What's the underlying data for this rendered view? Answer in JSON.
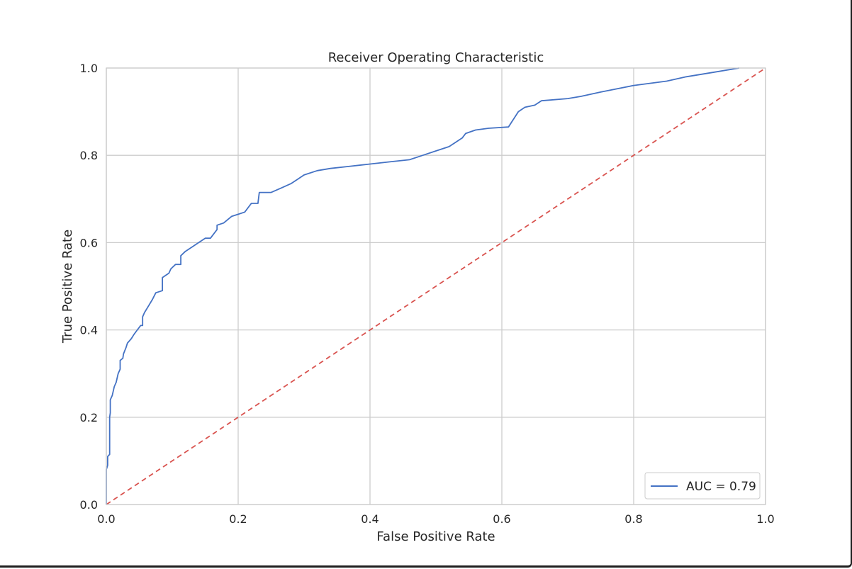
{
  "chart_data": {
    "type": "line",
    "title": "Receiver Operating Characteristic",
    "xlabel": "False Positive Rate",
    "ylabel": "True Positive Rate",
    "xlim": [
      0.0,
      1.0
    ],
    "ylim": [
      0.0,
      1.0
    ],
    "xticks": [
      "0.0",
      "0.2",
      "0.4",
      "0.6",
      "0.8",
      "1.0"
    ],
    "yticks": [
      "0.0",
      "0.2",
      "0.4",
      "0.6",
      "0.8",
      "1.0"
    ],
    "grid": true,
    "legend_position": "lower-right",
    "series": [
      {
        "name": "AUC = 0.79",
        "color": "#4472c4",
        "style": "solid",
        "x": [
          0.0,
          0.0,
          0.002,
          0.002,
          0.005,
          0.005,
          0.006,
          0.006,
          0.009,
          0.012,
          0.015,
          0.018,
          0.021,
          0.021,
          0.025,
          0.026,
          0.03,
          0.032,
          0.035,
          0.038,
          0.042,
          0.047,
          0.052,
          0.055,
          0.055,
          0.058,
          0.062,
          0.07,
          0.075,
          0.085,
          0.085,
          0.095,
          0.098,
          0.105,
          0.113,
          0.113,
          0.12,
          0.13,
          0.14,
          0.15,
          0.158,
          0.168,
          0.168,
          0.178,
          0.19,
          0.2,
          0.21,
          0.22,
          0.23,
          0.232,
          0.25,
          0.265,
          0.28,
          0.29,
          0.3,
          0.32,
          0.34,
          0.37,
          0.4,
          0.43,
          0.46,
          0.48,
          0.5,
          0.52,
          0.53,
          0.54,
          0.545,
          0.56,
          0.58,
          0.61,
          0.625,
          0.635,
          0.65,
          0.66,
          0.7,
          0.72,
          0.75,
          0.8,
          0.85,
          0.88,
          0.92,
          0.96
        ],
        "y": [
          0.0,
          0.08,
          0.09,
          0.11,
          0.115,
          0.2,
          0.21,
          0.24,
          0.25,
          0.27,
          0.28,
          0.3,
          0.31,
          0.33,
          0.335,
          0.345,
          0.36,
          0.37,
          0.375,
          0.38,
          0.39,
          0.4,
          0.41,
          0.41,
          0.43,
          0.44,
          0.45,
          0.47,
          0.485,
          0.49,
          0.52,
          0.53,
          0.54,
          0.55,
          0.55,
          0.57,
          0.58,
          0.59,
          0.6,
          0.61,
          0.61,
          0.63,
          0.64,
          0.645,
          0.66,
          0.665,
          0.67,
          0.69,
          0.69,
          0.715,
          0.715,
          0.725,
          0.735,
          0.745,
          0.755,
          0.765,
          0.77,
          0.775,
          0.78,
          0.785,
          0.79,
          0.8,
          0.81,
          0.82,
          0.83,
          0.84,
          0.85,
          0.858,
          0.862,
          0.865,
          0.9,
          0.91,
          0.915,
          0.925,
          0.93,
          0.935,
          0.945,
          0.96,
          0.97,
          0.98,
          0.99,
          1.0
        ]
      },
      {
        "color": "#d9534f",
        "style": "dashed",
        "x": [
          0.0,
          1.0
        ],
        "y": [
          0.0,
          1.0
        ]
      }
    ]
  }
}
